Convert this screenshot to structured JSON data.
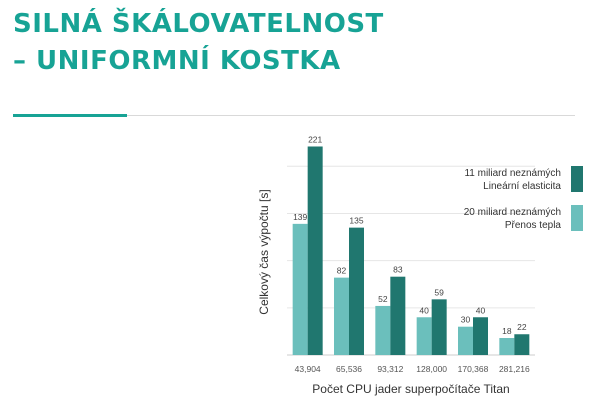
{
  "slide": {
    "title_line1": "SILNÁ ŠKÁLOVATELNOST",
    "title_line2": "– UNIFORMNÍ KOSTKA"
  },
  "colors": {
    "accent": "#17a395",
    "series_dark": "#20776f",
    "series_light": "#6bbfbc"
  },
  "chart_data": {
    "type": "bar",
    "xlabel": "Počet CPU jader superpočítače Titan",
    "ylabel": "Celkový čas výpočtu [s]",
    "categories": [
      "43,904",
      "65,536",
      "93,312",
      "128,000",
      "170,368",
      "281,216"
    ],
    "ylim": [
      0,
      230
    ],
    "grid": true,
    "legend_position": "right",
    "series": [
      {
        "name_lines": [
          "20 miliard neznámých",
          "Přenos tepla"
        ],
        "color": "#6bbfbc",
        "values": [
          139,
          82,
          52,
          40,
          30,
          18
        ]
      },
      {
        "name_lines": [
          "11 miliard neznámých",
          "Lineární elasticita"
        ],
        "color": "#20776f",
        "values": [
          221,
          135,
          83,
          59,
          40,
          22
        ]
      }
    ]
  }
}
